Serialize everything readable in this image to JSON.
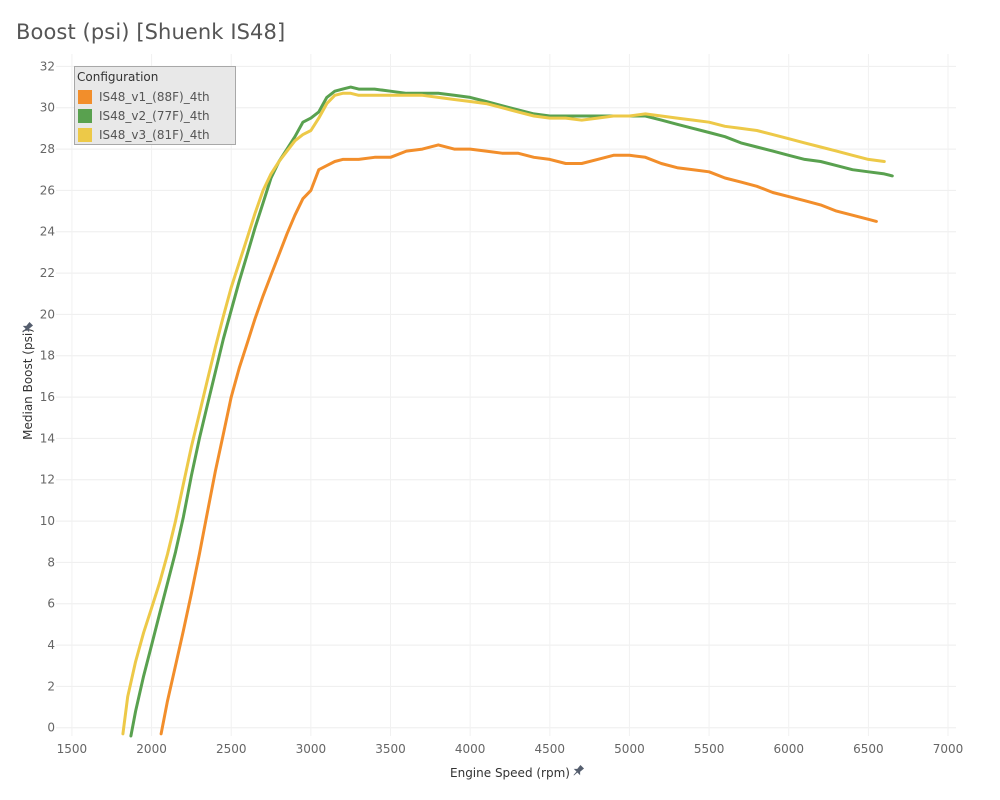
{
  "chart_data": {
    "type": "line",
    "title": "Boost (psi) [Shuenk IS48]",
    "xlabel": "Engine Speed (rpm)",
    "ylabel": "Median Boost (psi)",
    "xlim": [
      1400,
      7050
    ],
    "ylim": [
      -0.4,
      32.6
    ],
    "x_ticks": [
      1500,
      2000,
      2500,
      3000,
      3500,
      4000,
      4500,
      5000,
      5500,
      6000,
      6500,
      7000
    ],
    "y_ticks": [
      0,
      2,
      4,
      6,
      8,
      10,
      12,
      14,
      16,
      18,
      20,
      22,
      24,
      26,
      28,
      30,
      32
    ],
    "grid": true,
    "legend": {
      "title": "Configuration",
      "placement": "top-left"
    },
    "series": [
      {
        "name": "IS48_v1_(88F)_4th",
        "color": "#f28e2b",
        "x": [
          2060,
          2100,
          2150,
          2200,
          2250,
          2300,
          2350,
          2400,
          2450,
          2500,
          2550,
          2600,
          2650,
          2700,
          2750,
          2800,
          2850,
          2900,
          2950,
          3000,
          3050,
          3100,
          3150,
          3200,
          3250,
          3300,
          3400,
          3500,
          3600,
          3700,
          3800,
          3900,
          4000,
          4100,
          4200,
          4300,
          4400,
          4500,
          4600,
          4700,
          4800,
          4900,
          5000,
          5100,
          5200,
          5300,
          5400,
          5500,
          5600,
          5700,
          5800,
          5900,
          6000,
          6100,
          6200,
          6300,
          6400,
          6500,
          6550
        ],
        "y": [
          -0.3,
          1.3,
          3.0,
          4.7,
          6.5,
          8.4,
          10.4,
          12.4,
          14.2,
          16.0,
          17.4,
          18.6,
          19.8,
          20.9,
          21.9,
          22.9,
          23.9,
          24.8,
          25.6,
          26.0,
          27.0,
          27.2,
          27.4,
          27.5,
          27.5,
          27.5,
          27.6,
          27.6,
          27.9,
          28.0,
          28.2,
          28.0,
          28.0,
          27.9,
          27.8,
          27.8,
          27.6,
          27.5,
          27.3,
          27.3,
          27.5,
          27.7,
          27.7,
          27.6,
          27.3,
          27.1,
          27.0,
          26.9,
          26.6,
          26.4,
          26.2,
          25.9,
          25.7,
          25.5,
          25.3,
          25.0,
          24.8,
          24.6,
          24.5
        ]
      },
      {
        "name": "IS48_v2_(77F)_4th",
        "color": "#59a14f",
        "x": [
          1870,
          1900,
          1950,
          2000,
          2050,
          2100,
          2150,
          2200,
          2250,
          2300,
          2350,
          2400,
          2450,
          2500,
          2550,
          2600,
          2650,
          2700,
          2750,
          2800,
          2850,
          2900,
          2950,
          3000,
          3050,
          3100,
          3150,
          3200,
          3250,
          3300,
          3400,
          3500,
          3600,
          3700,
          3800,
          3900,
          4000,
          4100,
          4200,
          4300,
          4400,
          4500,
          4600,
          4700,
          4800,
          4900,
          5000,
          5100,
          5200,
          5300,
          5400,
          5500,
          5600,
          5700,
          5800,
          5900,
          6000,
          6100,
          6200,
          6300,
          6400,
          6500,
          6600,
          6650
        ],
        "y": [
          -0.4,
          0.8,
          2.5,
          4.0,
          5.5,
          7.0,
          8.5,
          10.2,
          12.2,
          14.0,
          15.6,
          17.2,
          18.8,
          20.2,
          21.6,
          22.9,
          24.2,
          25.4,
          26.6,
          27.4,
          28.0,
          28.6,
          29.3,
          29.5,
          29.8,
          30.5,
          30.8,
          30.9,
          31.0,
          30.9,
          30.9,
          30.8,
          30.7,
          30.7,
          30.7,
          30.6,
          30.5,
          30.3,
          30.1,
          29.9,
          29.7,
          29.6,
          29.6,
          29.6,
          29.6,
          29.6,
          29.6,
          29.6,
          29.4,
          29.2,
          29.0,
          28.8,
          28.6,
          28.3,
          28.1,
          27.9,
          27.7,
          27.5,
          27.4,
          27.2,
          27.0,
          26.9,
          26.8,
          26.7
        ]
      },
      {
        "name": "IS48_v3_(81F)_4th",
        "color": "#edc948",
        "x": [
          1820,
          1850,
          1900,
          1950,
          2000,
          2050,
          2100,
          2150,
          2200,
          2250,
          2300,
          2350,
          2400,
          2450,
          2500,
          2550,
          2600,
          2650,
          2700,
          2750,
          2800,
          2850,
          2900,
          2950,
          3000,
          3050,
          3100,
          3150,
          3200,
          3250,
          3300,
          3400,
          3500,
          3600,
          3700,
          3800,
          3900,
          4000,
          4100,
          4200,
          4300,
          4400,
          4500,
          4600,
          4700,
          4800,
          4900,
          5000,
          5100,
          5200,
          5300,
          5400,
          5500,
          5600,
          5700,
          5800,
          5900,
          6000,
          6100,
          6200,
          6300,
          6400,
          6500,
          6600
        ],
        "y": [
          -0.3,
          1.5,
          3.2,
          4.6,
          5.8,
          7.0,
          8.4,
          10.0,
          11.8,
          13.6,
          15.2,
          16.8,
          18.4,
          19.9,
          21.3,
          22.5,
          23.7,
          24.9,
          26.0,
          26.8,
          27.4,
          27.9,
          28.4,
          28.7,
          28.9,
          29.5,
          30.2,
          30.6,
          30.7,
          30.7,
          30.6,
          30.6,
          30.6,
          30.6,
          30.6,
          30.5,
          30.4,
          30.3,
          30.2,
          30.0,
          29.8,
          29.6,
          29.5,
          29.5,
          29.4,
          29.5,
          29.6,
          29.6,
          29.7,
          29.6,
          29.5,
          29.4,
          29.3,
          29.1,
          29.0,
          28.9,
          28.7,
          28.5,
          28.3,
          28.1,
          27.9,
          27.7,
          27.5,
          27.4
        ]
      }
    ]
  }
}
